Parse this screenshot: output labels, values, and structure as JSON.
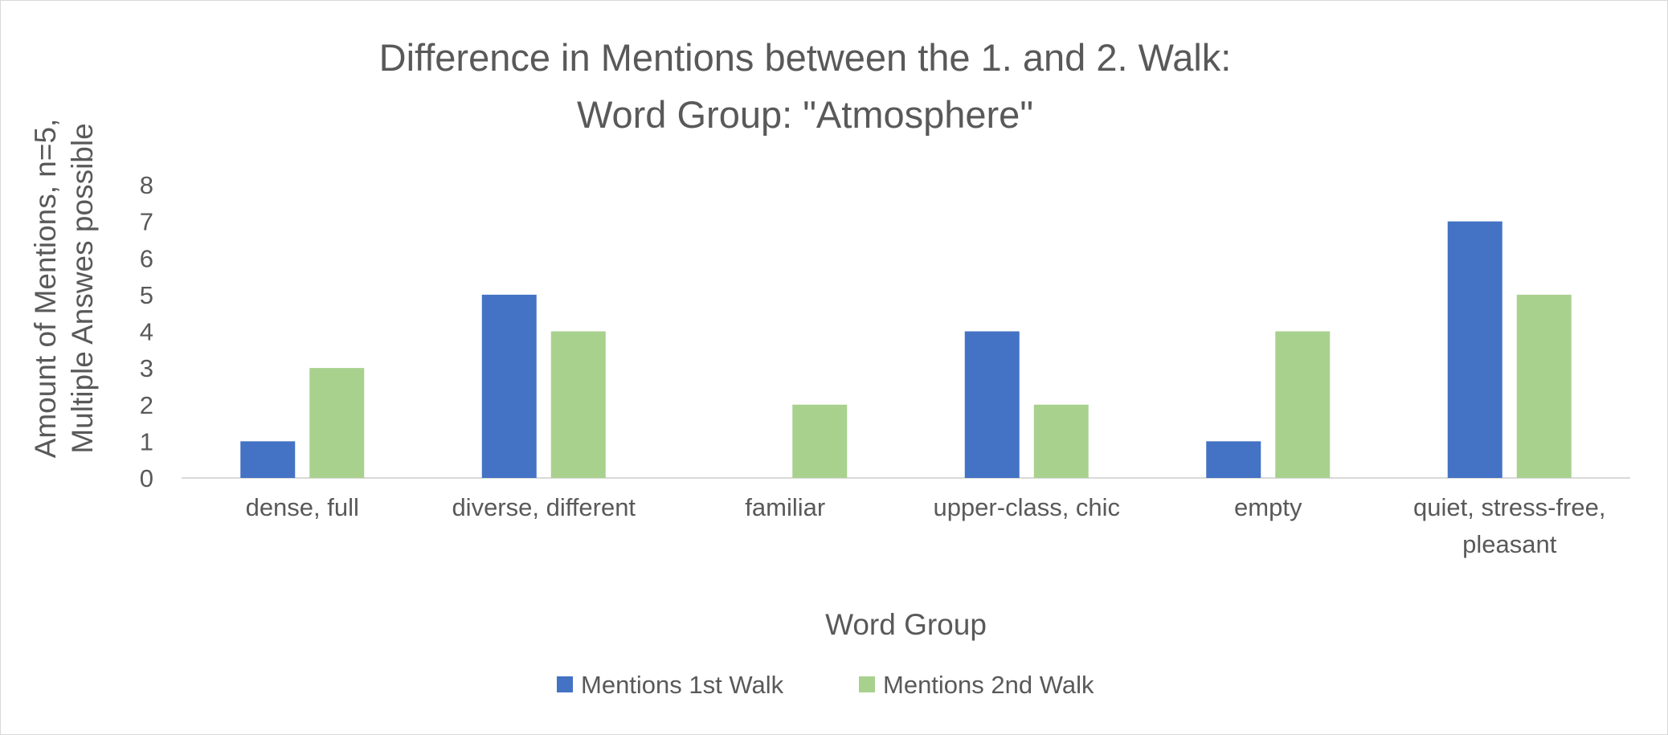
{
  "chart_data": {
    "type": "bar",
    "title": [
      "Difference in Mentions between the 1. and 2. Walk:",
      "Word Group: \"Atmosphere\""
    ],
    "xlabel": "Word Group",
    "ylabel": [
      "Amount of Mentions, n=5,",
      "Multiple Answes possible"
    ],
    "ylim": [
      0,
      8
    ],
    "yticks": [
      "0",
      "1",
      "2",
      "3",
      "4",
      "5",
      "6",
      "7",
      "8"
    ],
    "grid": false,
    "legend_position": "bottom",
    "categories": [
      [
        "dense, full"
      ],
      [
        "diverse, different"
      ],
      [
        "familiar"
      ],
      [
        "upper-class, chic"
      ],
      [
        "empty"
      ],
      [
        "quiet, stress-free,",
        "pleasant"
      ]
    ],
    "series": [
      {
        "name": "Mentions 1st Walk",
        "color": "#4472C4",
        "values": [
          1,
          5,
          0,
          4,
          1,
          7
        ]
      },
      {
        "name": "Mentions 2nd Walk",
        "color": "#A9D18E",
        "values": [
          3,
          4,
          2,
          2,
          4,
          5
        ]
      }
    ]
  }
}
